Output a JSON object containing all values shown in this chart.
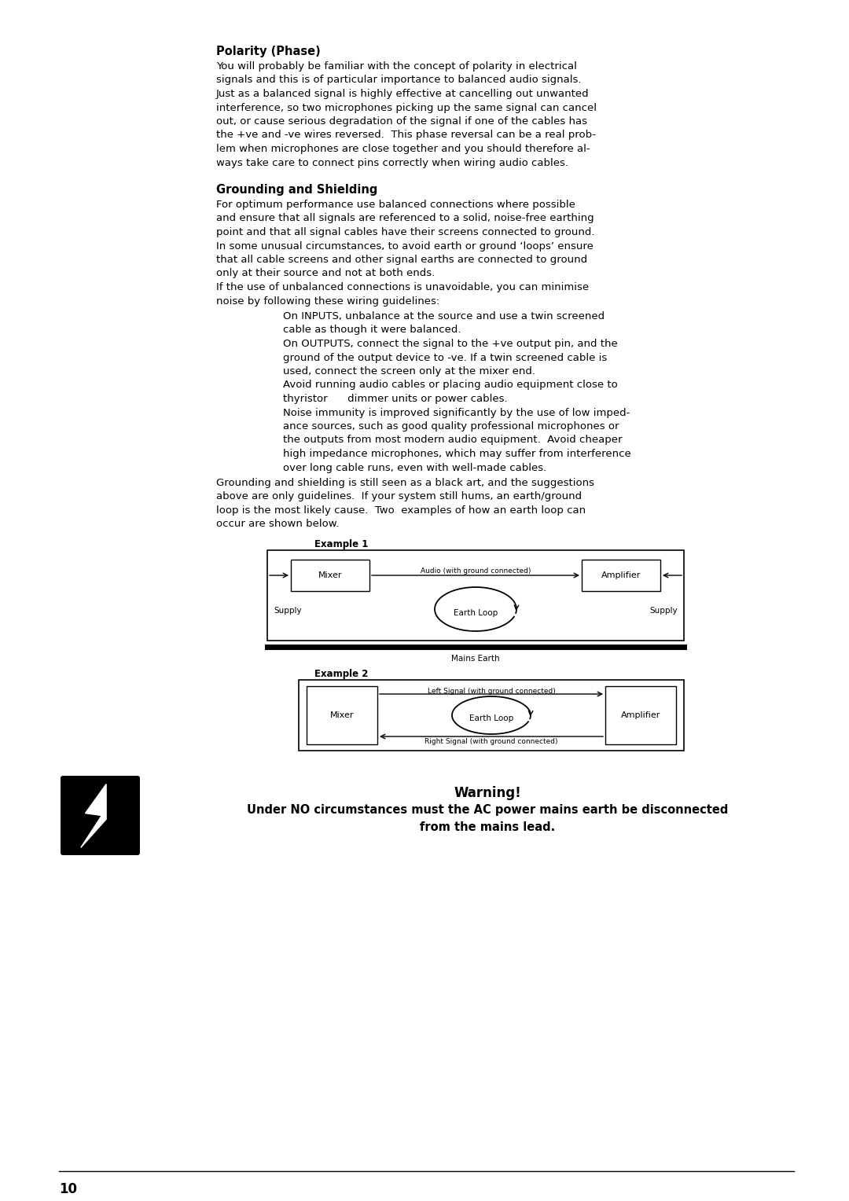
{
  "page_bg": "#ffffff",
  "page_number": "10",
  "title1": "Polarity (Phase)",
  "para1_lines": [
    "You will probably be familiar with the concept of polarity in electrical",
    "signals and this is of particular importance to balanced audio signals.",
    "Just as a balanced signal is highly effective at cancelling out unwanted",
    "interference, so two microphones picking up the same signal can cancel",
    "out, or cause serious degradation of the signal if one of the cables has",
    "the +ve and -ve wires reversed.  This phase reversal can be a real prob-",
    "lem when microphones are close together and you should therefore al-",
    "ways take care to connect pins correctly when wiring audio cables."
  ],
  "title2": "Grounding and Shielding",
  "para2_lines": [
    "For optimum performance use balanced connections where possible",
    "and ensure that all signals are referenced to a solid, noise-free earthing",
    "point and that all signal cables have their screens connected to ground.",
    "In some unusual circumstances, to avoid earth or ground ‘loops’ ensure",
    "that all cable screens and other signal earths are connected to ground",
    "only at their source and not at both ends.",
    "If the use of unbalanced connections is unavoidable, you can minimise",
    "noise by following these wiring guidelines:"
  ],
  "bullet1_lines": [
    "On INPUTS, unbalance at the source and use a twin screened",
    "cable as though it were balanced."
  ],
  "bullet2_lines": [
    "On OUTPUTS, connect the signal to the +ve output pin, and the",
    "ground of the output device to -ve. If a twin screened cable is",
    "used, connect the screen only at the mixer end."
  ],
  "bullet3_lines": [
    "Avoid running audio cables or placing audio equipment close to",
    "thyristor      dimmer units or power cables."
  ],
  "bullet4_lines": [
    "Noise immunity is improved significantly by the use of low imped-",
    "ance sources, such as good quality professional microphones or",
    "the outputs from most modern audio equipment.  Avoid cheaper",
    "high impedance microphones, which may suffer from interference",
    "over long cable runs, even with well-made cables."
  ],
  "para3_lines": [
    "Grounding and shielding is still seen as a black art, and the suggestions",
    "above are only guidelines.  If your system still hums, an earth/ground",
    "loop is the most likely cause.  Two  examples of how an earth loop can",
    "occur are shown below."
  ],
  "example1_label": "Example 1",
  "example2_label": "Example 2",
  "mixer_label": "Mixer",
  "amplifier_label": "Amplifier",
  "audio_label": "Audio (with ground connected)",
  "earth_loop_label": "Earth Loop",
  "supply_left": "Supply",
  "supply_right": "Supply",
  "mains_earth_label": "Mains Earth",
  "left_signal_label": "Left Signal (with ground connected)",
  "right_signal_label": "Right Signal (with ground connected)",
  "warning_title": "Warning!",
  "warning_line1": "Under NO circumstances must the AC power mains earth be disconnected",
  "warning_line2": "from the mains lead.",
  "text_color": "#000000"
}
